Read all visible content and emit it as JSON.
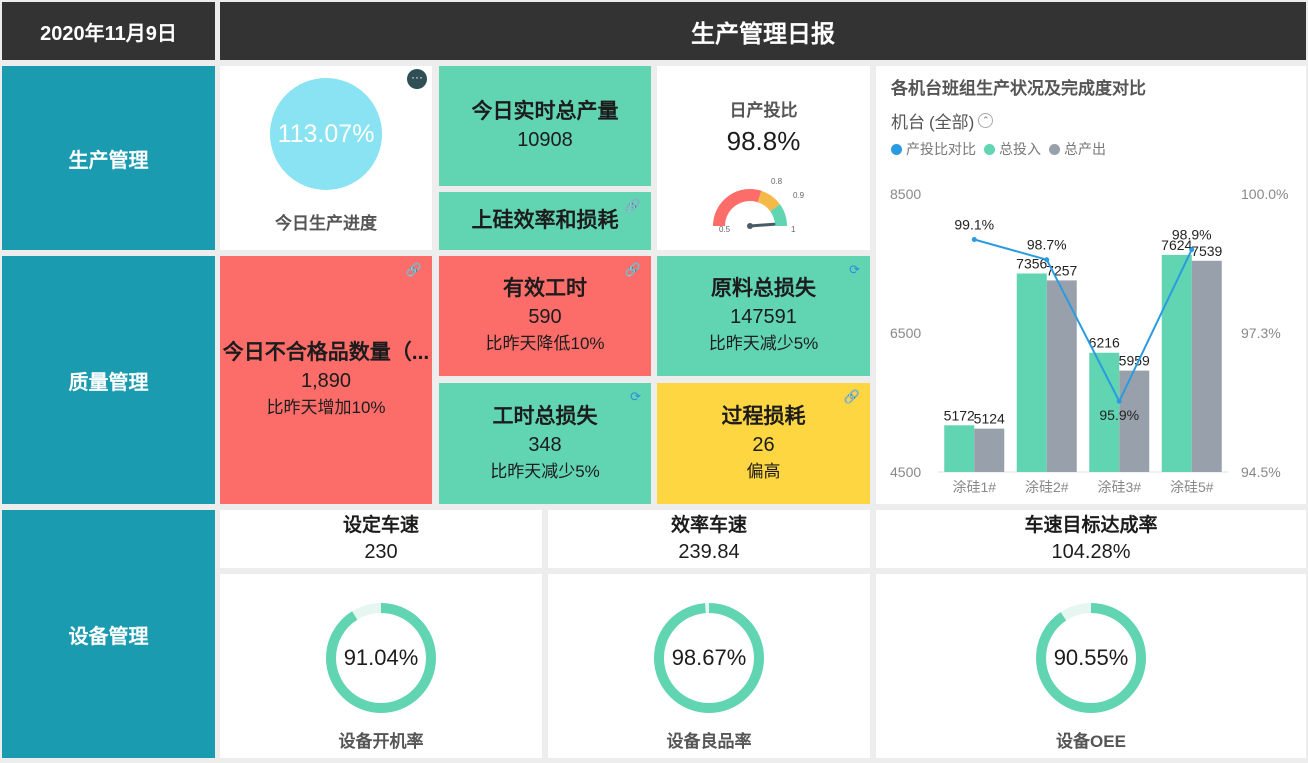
{
  "header": {
    "date": "2020年11月9日",
    "title": "生产管理日报"
  },
  "sections": {
    "production": "生产管理",
    "quality": "质量管理",
    "equipment": "设备管理"
  },
  "progress": {
    "value_text": "113.07%",
    "label": "今日生产进度",
    "menu_icon": "more-icon"
  },
  "realtime_output": {
    "title": "今日实时总产量",
    "value": "10908"
  },
  "input_output_ratio": {
    "title": "日产投比",
    "value": "98.8%",
    "level": 0.988,
    "ticks": {
      "min": "0.5",
      "a": "0.8",
      "b": "0.9",
      "max": "1"
    },
    "colors": {
      "low": "#fc6d6a",
      "mid": "#f5b94a",
      "high": "#61d4b1"
    }
  },
  "silicon_efficiency": {
    "title": "上硅效率和损耗",
    "icon": "link-icon"
  },
  "defects": {
    "title": "今日不合格品数量（...",
    "value": "1,890",
    "sub": "比昨天增加10%",
    "icon": "link-icon"
  },
  "effective_hours": {
    "title": "有效工时",
    "value": "590",
    "sub": "比昨天降低10%",
    "icon": "link-icon"
  },
  "material_loss": {
    "title": "原料总损失",
    "value": "147591",
    "sub": "比昨天减少5%",
    "icon": "refresh-icon"
  },
  "hours_loss": {
    "title": "工时总损失",
    "value": "348",
    "sub": "比昨天减少5%",
    "icon": "refresh-icon"
  },
  "process_loss": {
    "title": "过程损耗",
    "value": "26",
    "sub": "偏高",
    "icon": "link-icon"
  },
  "speed_set": {
    "title": "设定车速",
    "value": "230"
  },
  "speed_eff": {
    "title": "效率车速",
    "value": "239.84"
  },
  "speed_rate": {
    "title": "车速目标达成率",
    "value": "104.28%"
  },
  "rings": [
    {
      "value_text": "91.04%",
      "value": 0.9104,
      "label": "设备开机率"
    },
    {
      "value_text": "98.67%",
      "value": 0.9867,
      "label": "设备良品率"
    },
    {
      "value_text": "90.55%",
      "value": 0.9055,
      "label": "设备OEE"
    }
  ],
  "colors": {
    "dark": "#333333",
    "teal": "#1a9bb0",
    "green": "#61d4b1",
    "red": "#fc6d6a",
    "yellow": "#fdd642",
    "gray": "#98a1ab",
    "blue": "#2a9be0"
  },
  "chart_data": {
    "type": "bar",
    "title": "各机台班组生产状况及完成度对比",
    "filter": {
      "label": "机台",
      "value": "(全部)"
    },
    "categories": [
      "涂硅1#",
      "涂硅2#",
      "涂硅3#",
      "涂硅5#"
    ],
    "series": [
      {
        "name": "总投入",
        "type": "bar",
        "axis": "left",
        "color": "#61d4b1",
        "values": [
          5172,
          7356,
          6216,
          7624
        ]
      },
      {
        "name": "总产出",
        "type": "bar",
        "axis": "left",
        "color": "#98a1ab",
        "values": [
          5124,
          7257,
          5959,
          7539
        ]
      },
      {
        "name": "产投比对比",
        "type": "line",
        "axis": "right",
        "color": "#2a9be0",
        "values": [
          99.1,
          98.7,
          95.9,
          98.9
        ],
        "labels": [
          "99.1%",
          "98.7%",
          "95.9%",
          "98.9%"
        ]
      }
    ],
    "legend_order": [
      "产投比对比",
      "总投入",
      "总产出"
    ],
    "legend_placement": "top-left",
    "y_left": {
      "range": [
        4500,
        8500
      ],
      "ticks": [
        "8500",
        "6500",
        "4500"
      ]
    },
    "y_right": {
      "range": [
        94.5,
        100
      ],
      "ticks": [
        "100.0%",
        "97.3%",
        "94.5%"
      ]
    },
    "grid": false
  }
}
